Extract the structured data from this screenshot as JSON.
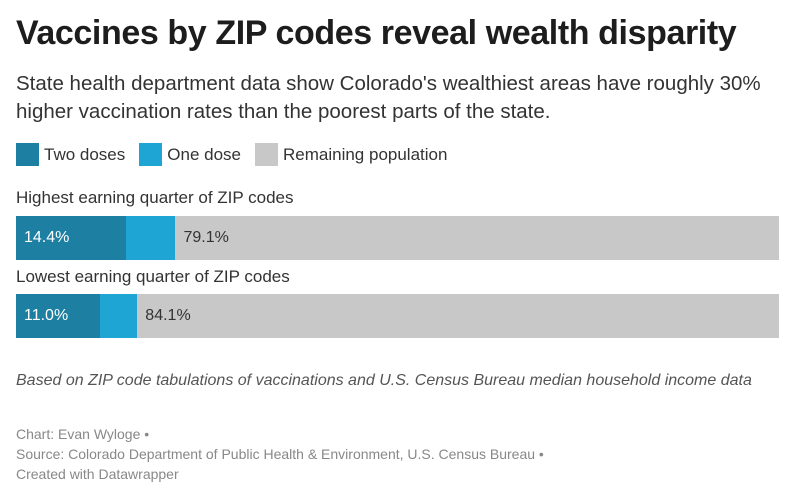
{
  "header": {
    "title": "Vaccines by ZIP codes reveal wealth disparity",
    "subtitle": "State health department data show Colorado's wealthiest areas have roughly 30% higher vaccination rates than the poorest parts of the state."
  },
  "legend": [
    {
      "label": "Two doses",
      "color": "#1d7fa1"
    },
    {
      "label": "One dose",
      "color": "#1ea5d3"
    },
    {
      "label": "Remaining population",
      "color": "#c8c8c8"
    }
  ],
  "chart_data": {
    "type": "bar",
    "orientation": "horizontal",
    "stacked": true,
    "categories": [
      "Highest earning quarter of ZIP codes",
      "Lowest earning quarter of ZIP codes"
    ],
    "series": [
      {
        "name": "Two doses",
        "values": [
          14.4,
          11.0
        ],
        "labels": [
          "14.4%",
          "11.0%"
        ],
        "color": "#1d7fa1"
      },
      {
        "name": "One dose",
        "values": [
          6.5,
          4.9
        ],
        "labels": [
          "",
          ""
        ],
        "color": "#1ea5d3"
      },
      {
        "name": "Remaining population",
        "values": [
          79.1,
          84.1
        ],
        "labels": [
          "79.1%",
          "84.1%"
        ],
        "color": "#c8c8c8"
      }
    ],
    "xlim": [
      0,
      100
    ]
  },
  "footer": {
    "notes": "Based on ZIP code tabulations of vaccinations and U.S. Census Bureau median household income data",
    "chart_credit": "Chart: Evan Wyloge •",
    "source": "Source: Colorado Department of Public Health & Environment, U.S. Census Bureau •",
    "created_with": "Created with Datawrapper"
  }
}
